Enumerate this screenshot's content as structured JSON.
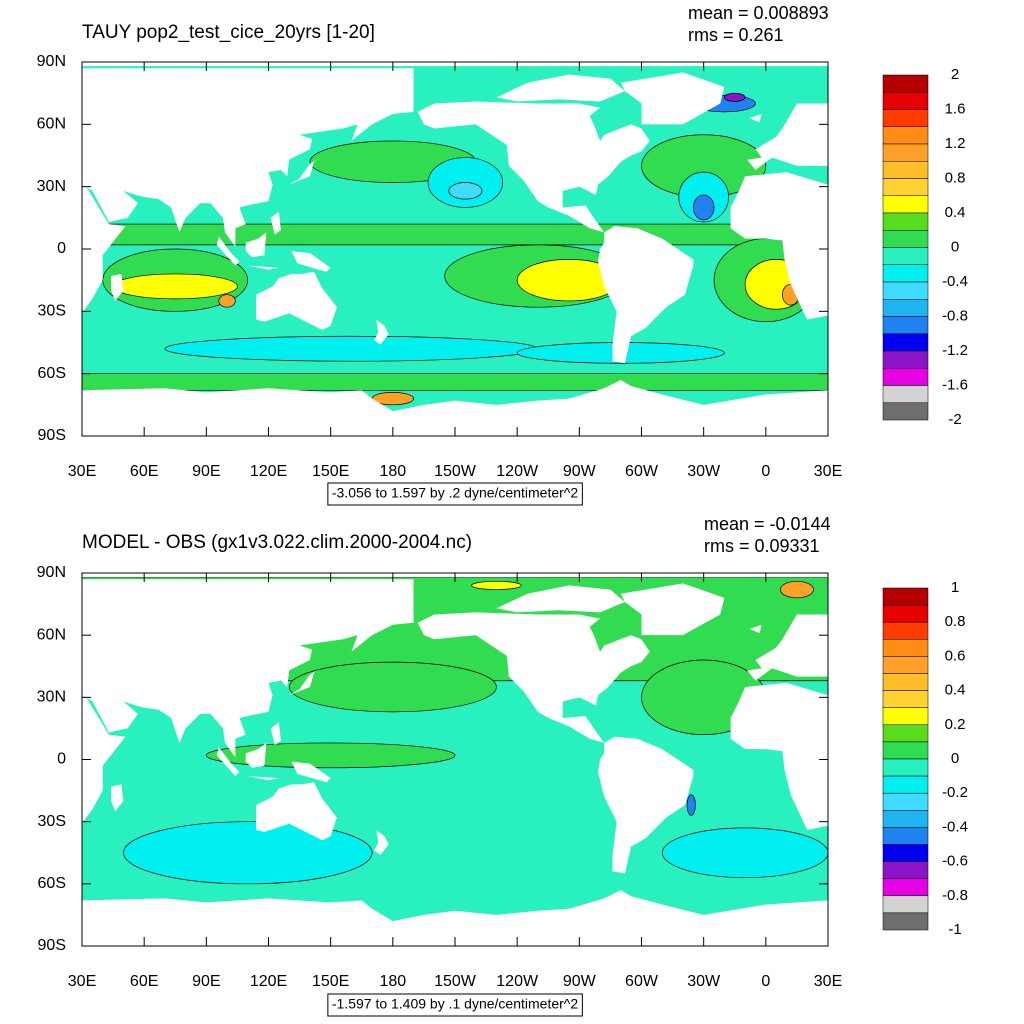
{
  "chart_data": [
    {
      "type": "contour",
      "title": "TAUY pop2_test_cice_20yrs [1-20]",
      "mean_label": "mean = 0.008893",
      "rms_label": "rms = 0.261",
      "info": "-3.056 to 1.597 by .2 dyne/centimeter^2",
      "xlim": [
        30,
        390
      ],
      "ylim": [
        -90,
        90
      ],
      "xticks": [
        {
          "value": 30,
          "label": "30E"
        },
        {
          "value": 60,
          "label": "60E"
        },
        {
          "value": 90,
          "label": "90E"
        },
        {
          "value": 120,
          "label": "120E"
        },
        {
          "value": 150,
          "label": "150E"
        },
        180,
        {
          "value": 210,
          "label": "150W"
        },
        {
          "value": 240,
          "label": "120W"
        },
        {
          "value": 270,
          "label": "90W"
        },
        {
          "value": 300,
          "label": "60W"
        },
        {
          "value": 330,
          "label": "30W"
        },
        {
          "value": 360,
          "label": "0"
        },
        {
          "value": 390,
          "label": "30E"
        }
      ],
      "yticks": [
        {
          "value": 90,
          "label": "90N"
        },
        {
          "value": 60,
          "label": "60N"
        },
        {
          "value": 30,
          "label": "30N"
        },
        0,
        {
          "value": -30,
          "label": "30S"
        },
        {
          "value": -60,
          "label": "60S"
        },
        {
          "value": -90,
          "label": "90S"
        }
      ],
      "colorbar": {
        "labels": [
          2,
          1.6,
          1.2,
          0.8,
          0.4,
          0,
          -0.4,
          -0.8,
          -1.2,
          -1.6,
          -2
        ],
        "colors": [
          "#b40000",
          "#e60000",
          "#ff3c00",
          "#ff8c14",
          "#ffa028",
          "#ffbe28",
          "#ffd232",
          "#ffff00",
          "#5adc1e",
          "#32dc50",
          "#28f0be",
          "#00f0f0",
          "#40dcff",
          "#1eb4f0",
          "#1e82f0",
          "#0000f0",
          "#8c14c8",
          "#e600e6",
          "#d2d2d2",
          "#6e6e6e"
        ]
      }
    },
    {
      "type": "contour",
      "title": "MODEL - OBS (gx1v3.022.clim.2000-2004.nc)",
      "mean_label": "mean = -0.0144",
      "rms_label": "rms = 0.09331",
      "info": "-1.597 to 1.409 by .1 dyne/centimeter^2",
      "xlim": [
        30,
        390
      ],
      "ylim": [
        -90,
        90
      ],
      "xticks": [
        {
          "value": 30,
          "label": "30E"
        },
        {
          "value": 60,
          "label": "60E"
        },
        {
          "value": 90,
          "label": "90E"
        },
        {
          "value": 120,
          "label": "120E"
        },
        {
          "value": 150,
          "label": "150E"
        },
        180,
        {
          "value": 210,
          "label": "150W"
        },
        {
          "value": 240,
          "label": "120W"
        },
        {
          "value": 270,
          "label": "90W"
        },
        {
          "value": 300,
          "label": "60W"
        },
        {
          "value": 330,
          "label": "30W"
        },
        {
          "value": 360,
          "label": "0"
        },
        {
          "value": 390,
          "label": "30E"
        }
      ],
      "yticks": [
        {
          "value": 90,
          "label": "90N"
        },
        {
          "value": 60,
          "label": "60N"
        },
        {
          "value": 30,
          "label": "30N"
        },
        0,
        {
          "value": -30,
          "label": "30S"
        },
        {
          "value": -60,
          "label": "60S"
        },
        {
          "value": -90,
          "label": "90S"
        }
      ],
      "colorbar": {
        "labels": [
          1,
          0.8,
          0.6,
          0.4,
          0.2,
          0,
          -0.2,
          -0.4,
          -0.6,
          -0.8,
          -1
        ],
        "colors": [
          "#b40000",
          "#e60000",
          "#ff3c00",
          "#ff8c14",
          "#ffa028",
          "#ffbe28",
          "#ffd232",
          "#ffff00",
          "#5adc1e",
          "#32dc50",
          "#28f0be",
          "#00f0f0",
          "#40dcff",
          "#1eb4f0",
          "#1e82f0",
          "#0000f0",
          "#8c14c8",
          "#e600e6",
          "#d2d2d2",
          "#6e6e6e"
        ]
      }
    }
  ]
}
